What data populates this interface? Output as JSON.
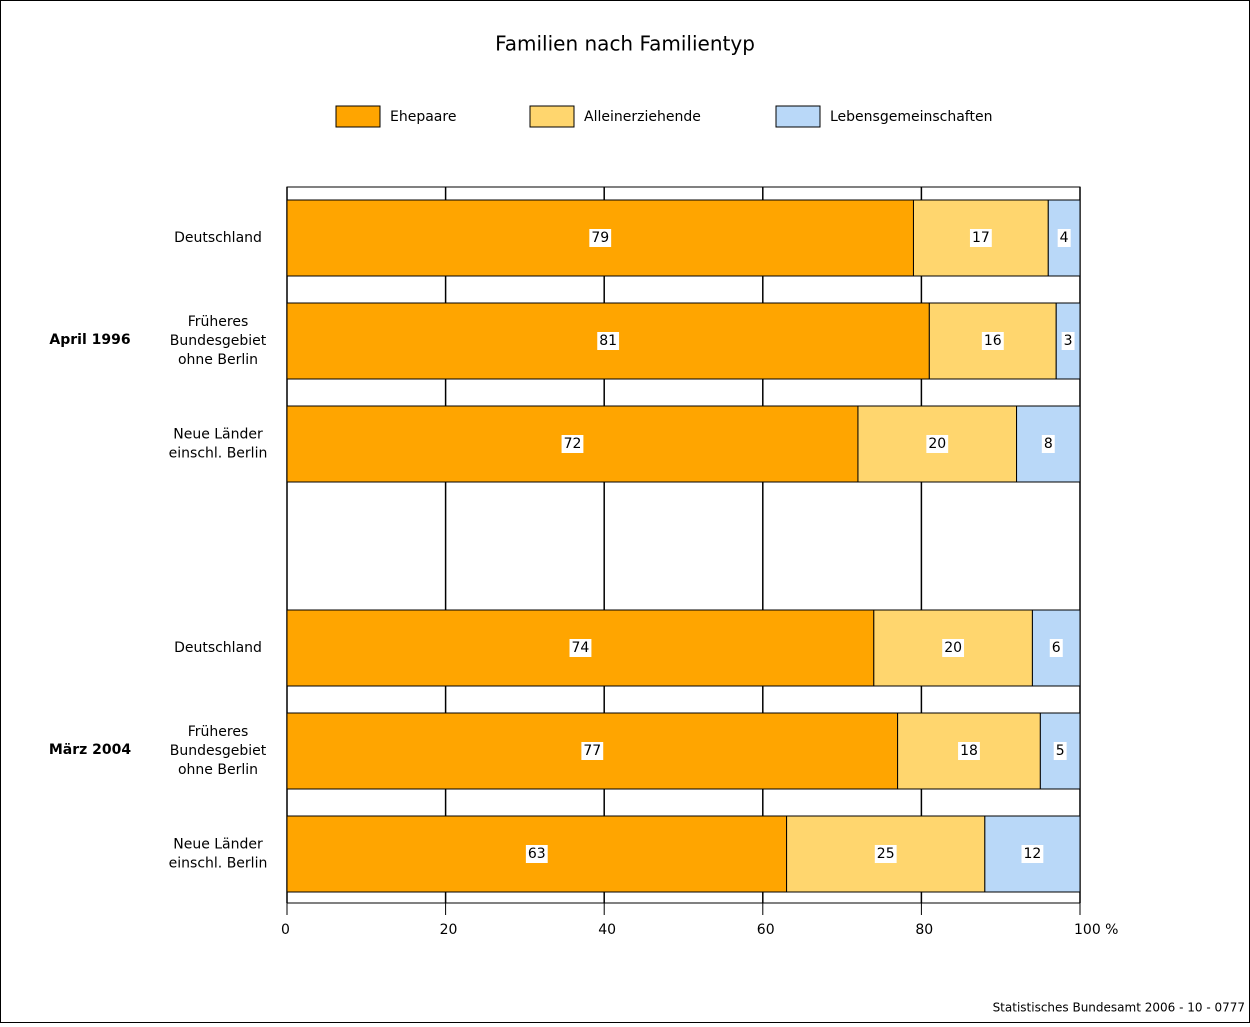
{
  "chart_data": {
    "type": "stacked-bar-horizontal",
    "title": "Familien nach Familientyp",
    "groups": [
      {
        "label": "April 1996",
        "categories": [
          [
            "Deutschland"
          ],
          [
            "Früheres",
            "Bundesgebiet",
            "ohne Berlin"
          ],
          [
            "Neue Länder",
            "einschl. Berlin"
          ]
        ]
      },
      {
        "label": "März 2004",
        "categories": [
          [
            "Deutschland"
          ],
          [
            "Früheres",
            "Bundesgebiet",
            "ohne Berlin"
          ],
          [
            "Neue Länder",
            "einschl. Berlin"
          ]
        ]
      }
    ],
    "series": [
      {
        "name": "Ehepaare",
        "color": "#ffa500",
        "values": [
          79,
          81,
          72,
          74,
          77,
          63
        ]
      },
      {
        "name": "Alleinerziehende",
        "color": "#ffd66e",
        "values": [
          17,
          16,
          20,
          20,
          18,
          25
        ]
      },
      {
        "name": "Lebensgemeinschaften",
        "color": "#b9d8f8",
        "values": [
          4,
          3,
          8,
          6,
          5,
          12
        ]
      }
    ],
    "xlim": [
      0,
      100
    ],
    "xticks": [
      0,
      20,
      40,
      60,
      80,
      {
        "value": 100,
        "label": "100 %"
      }
    ],
    "grid": true,
    "source": "Statistisches Bundesamt 2006 - 10 - 0777"
  }
}
